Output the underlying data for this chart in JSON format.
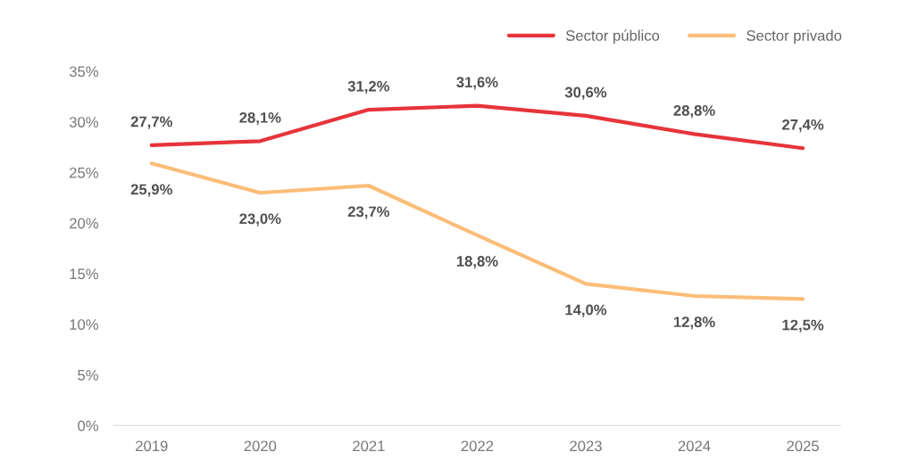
{
  "chart_data": {
    "type": "line",
    "categories": [
      "2019",
      "2020",
      "2021",
      "2022",
      "2023",
      "2024",
      "2025"
    ],
    "series": [
      {
        "name": "Sector público",
        "color": "#e6343a",
        "values": [
          27.7,
          28.1,
          31.2,
          31.6,
          30.6,
          28.8,
          27.4
        ],
        "value_labels": [
          "27,7%",
          "28,1%",
          "31,2%",
          "31,6%",
          "30,6%",
          "28,8%",
          "27,4%"
        ]
      },
      {
        "name": "Sector privado",
        "color": "#fbbd78",
        "values": [
          25.9,
          23.0,
          23.7,
          18.8,
          14.0,
          12.8,
          12.5
        ],
        "value_labels": [
          "25,9%",
          "23,0%",
          "23,7%",
          "18,8%",
          "14,0%",
          "12,8%",
          "12,5%"
        ]
      }
    ],
    "ylim": [
      0,
      35
    ],
    "yticks": [
      {
        "value": 0,
        "label": "0%"
      },
      {
        "value": 5,
        "label": "5%"
      },
      {
        "value": 10,
        "label": "10%"
      },
      {
        "value": 15,
        "label": "15%"
      },
      {
        "value": 20,
        "label": "20%"
      },
      {
        "value": 25,
        "label": "25%"
      },
      {
        "value": 30,
        "label": "30%"
      },
      {
        "value": 35,
        "label": "35%"
      }
    ],
    "grid": false,
    "legend": "top right",
    "marker": "none",
    "line_style": "solid"
  }
}
